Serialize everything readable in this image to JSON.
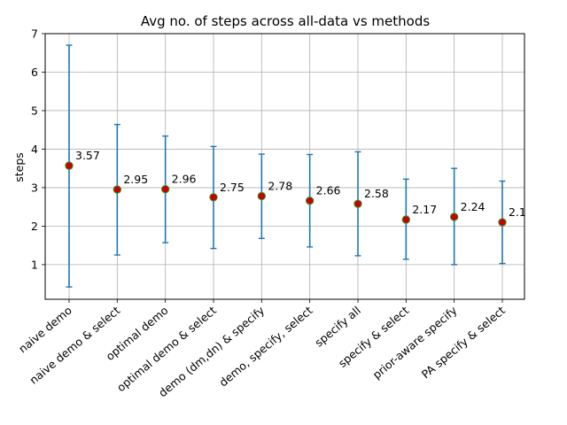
{
  "chart_data": {
    "type": "scatter",
    "title": "Avg no. of steps across all-data vs methods",
    "xlabel": "",
    "ylabel": "steps",
    "ylim": [
      0.1,
      7.0
    ],
    "yticks": [
      1,
      2,
      3,
      4,
      5,
      6,
      7
    ],
    "grid": true,
    "categories": [
      "naive demo",
      "naive demo & select",
      "optimal demo",
      "optimal demo & select",
      "demo (dm,dn) & specify",
      "demo, specify, select",
      "specify all",
      "specify & select",
      "prior-aware specify",
      "PA specify & select"
    ],
    "series": [
      {
        "values": [
          3.57,
          2.95,
          2.96,
          2.75,
          2.78,
          2.66,
          2.58,
          2.17,
          2.24,
          2.1
        ],
        "error_low": [
          0.42,
          1.25,
          1.57,
          1.42,
          1.68,
          1.46,
          1.23,
          1.14,
          1.0,
          1.03
        ],
        "error_high": [
          6.7,
          4.64,
          4.34,
          4.07,
          3.87,
          3.86,
          3.93,
          3.22,
          3.5,
          3.17
        ]
      }
    ],
    "data_labels": [
      "3.57",
      "2.95",
      "2.96",
      "2.75",
      "2.78",
      "2.66",
      "2.58",
      "2.17",
      "2.24",
      "2.1"
    ],
    "colors": {
      "errorbar": "#1f77b4",
      "marker_fill": "#cc0000",
      "marker_edge": "#2ca02c",
      "grid": "#b0b0b0"
    }
  }
}
